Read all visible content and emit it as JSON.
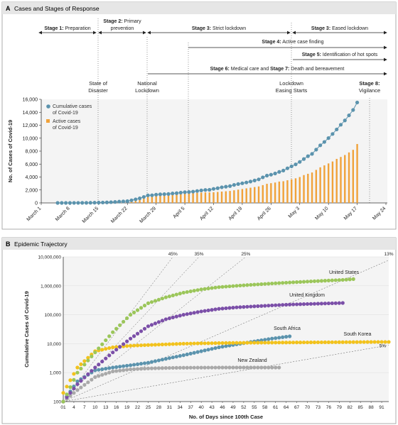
{
  "panelA": {
    "title": "Cases and Stages of Response",
    "letter": "A",
    "stages": [
      {
        "bold": "Stage 1:",
        "rest": " Preparation"
      },
      {
        "bold": "Stage 2:",
        "rest": " Primary",
        "line2": "prevention"
      },
      {
        "bold": "Stage 3:",
        "rest": " Strict lockdown"
      },
      {
        "bold": "Stage 3:",
        "rest": " Eased lockdown"
      },
      {
        "bold": "Stage 4:",
        "rest": " Active case finding"
      },
      {
        "bold": "Stage 5:",
        "rest": " Identification of hot spots"
      },
      {
        "bold": "Stage 6:",
        "rest": " Medical care and ",
        "bold2": "Stage 7:",
        "rest2": " Death and bereavement"
      }
    ],
    "events": [
      {
        "l1": "State of",
        "l2": "Disaster"
      },
      {
        "l1": "National",
        "l2": "Lockdown"
      },
      {
        "l1": "Lockdown",
        "l2": "Easing Starts"
      },
      {
        "l1": "Stage 8:",
        "l2": "Vigilance"
      }
    ]
  },
  "panelB": {
    "title": "Epidemic Trajectory",
    "letter": "B"
  },
  "colors": {
    "cumulative": "#5b93ad",
    "active": "#f0a23a",
    "us": "#9bc65a",
    "uk": "#7b4fa8",
    "sa": "#5b93ad",
    "sk": "#f2c21c",
    "nz": "#a9a9a9",
    "header": "#e6e6e6",
    "plotbg": "#f4f4f4"
  },
  "chart_data": [
    {
      "type": "bar",
      "xlabel": "",
      "ylabel": "No. of Cases of Covid-19",
      "ylim": [
        0,
        16000
      ],
      "yticks": [
        0,
        2000,
        4000,
        6000,
        8000,
        10000,
        12000,
        14000,
        16000
      ],
      "ytick_labels": [
        "0",
        "2,000",
        "4,000",
        "6,000",
        "8,000",
        "10,000",
        "12,000",
        "14,000",
        "16,000"
      ],
      "xticks": [
        "March 1",
        "March 8",
        "March 15",
        "March 22",
        "March 29",
        "April 5",
        "April 12",
        "April 19",
        "April 26",
        "May 3",
        "May 10",
        "May 17",
        "May 24"
      ],
      "series": [
        {
          "name": "Cumulative cases of Covid-19",
          "type": "line",
          "start_day": 4,
          "values": [
            1,
            1,
            1,
            2,
            3,
            7,
            13,
            16,
            24,
            38,
            51,
            62,
            85,
            116,
            150,
            202,
            240,
            274,
            402,
            554,
            709,
            927,
            1170,
            1187,
            1280,
            1326,
            1353,
            1380,
            1462,
            1505,
            1585,
            1655,
            1686,
            1749,
            1845,
            1934,
            2003,
            2028,
            2173,
            2272,
            2415,
            2506,
            2605,
            2783,
            2915,
            3034,
            3158,
            3300,
            3465,
            3635,
            3953,
            4220,
            4361,
            4546,
            4793,
            4996,
            5350,
            5647,
            5951,
            6336,
            6783,
            7220,
            7572,
            8232,
            8895,
            9420,
            10015,
            10652,
            11350,
            12074,
            12739,
            13524,
            14355,
            15515
          ]
        },
        {
          "name": "Active cases of Covid-19",
          "type": "bar",
          "start_day": 4,
          "values": [
            1,
            1,
            1,
            2,
            3,
            7,
            13,
            16,
            24,
            38,
            51,
            62,
            85,
            116,
            150,
            202,
            240,
            274,
            400,
            550,
            700,
            910,
            1140,
            1150,
            1230,
            1260,
            1270,
            1280,
            1340,
            1370,
            1430,
            1490,
            1500,
            1520,
            1560,
            1590,
            1620,
            1620,
            1650,
            1700,
            1750,
            1800,
            1850,
            1950,
            2050,
            2150,
            2250,
            2350,
            2450,
            2550,
            2750,
            2950,
            3050,
            3150,
            3300,
            3350,
            3500,
            3650,
            3800,
            4000,
            4300,
            4500,
            4700,
            5100,
            5500,
            5800,
            6100,
            6400,
            6800,
            7100,
            7400,
            7800,
            8200,
            9100
          ]
        }
      ],
      "legend_position": "top-left"
    },
    {
      "type": "scatter",
      "xlabel": "No. of Days since 100th Case",
      "ylabel": "Cumulative Cases of Covid-19",
      "yscale": "log",
      "ylim": [
        100,
        10000000
      ],
      "ytick_labels": [
        "100",
        "1,000",
        "10,000",
        "100,000",
        "1,000,000",
        "10,000,000"
      ],
      "xlim": [
        1,
        93
      ],
      "xtick_labels": [
        "01",
        "4",
        "7",
        "10",
        "13",
        "16",
        "19",
        "22",
        "25",
        "28",
        "31",
        "34",
        "37",
        "40",
        "43",
        "46",
        "49",
        "52",
        "55",
        "58",
        "61",
        "64",
        "67",
        "70",
        "73",
        "76",
        "79",
        "82",
        "85",
        "88",
        "91"
      ],
      "growth_lines": [
        "45%",
        "35%",
        "25%",
        "13%",
        "5%"
      ],
      "series": [
        {
          "name": "United States",
          "x": [
            1,
            5,
            10,
            15,
            20,
            25,
            30,
            35,
            40,
            45,
            50,
            55,
            60,
            65,
            70,
            75,
            80,
            83
          ],
          "y": [
            100,
            1000,
            5000,
            25000,
            100000,
            250000,
            400000,
            580000,
            750000,
            900000,
            1000000,
            1100000,
            1200000,
            1300000,
            1400000,
            1500000,
            1600000,
            1700000
          ]
        },
        {
          "name": "United Kingdom",
          "x": [
            1,
            5,
            10,
            15,
            20,
            25,
            30,
            35,
            40,
            45,
            50,
            55,
            60,
            65,
            70,
            75,
            80
          ],
          "y": [
            100,
            400,
            1500,
            5000,
            15000,
            40000,
            70000,
            100000,
            130000,
            160000,
            180000,
            195000,
            210000,
            225000,
            235000,
            245000,
            255000
          ]
        },
        {
          "name": "South Africa",
          "x": [
            1,
            5,
            10,
            15,
            20,
            25,
            30,
            35,
            40,
            45,
            50,
            55,
            60,
            65
          ],
          "y": [
            100,
            500,
            1200,
            1500,
            1800,
            2200,
            3000,
            4000,
            5500,
            7500,
            9500,
            12000,
            15000,
            18000
          ]
        },
        {
          "name": "South Korea",
          "x": [
            1,
            5,
            10,
            15,
            20,
            25,
            30,
            35,
            40,
            45,
            50,
            55,
            60,
            65,
            70,
            75,
            80,
            85,
            90,
            93
          ],
          "y": [
            200,
            1500,
            5500,
            7500,
            8500,
            9000,
            9500,
            10000,
            10300,
            10500,
            10700,
            10800,
            10900,
            11000,
            11100,
            11200,
            11300,
            11400,
            11500,
            11500
          ]
        },
        {
          "name": "New Zealand",
          "x": [
            1,
            5,
            10,
            15,
            20,
            25,
            30,
            35,
            40,
            45,
            50,
            55,
            60,
            62
          ],
          "y": [
            100,
            250,
            700,
            1100,
            1300,
            1400,
            1450,
            1480,
            1490,
            1500,
            1500,
            1500,
            1500,
            1500
          ]
        }
      ]
    }
  ]
}
